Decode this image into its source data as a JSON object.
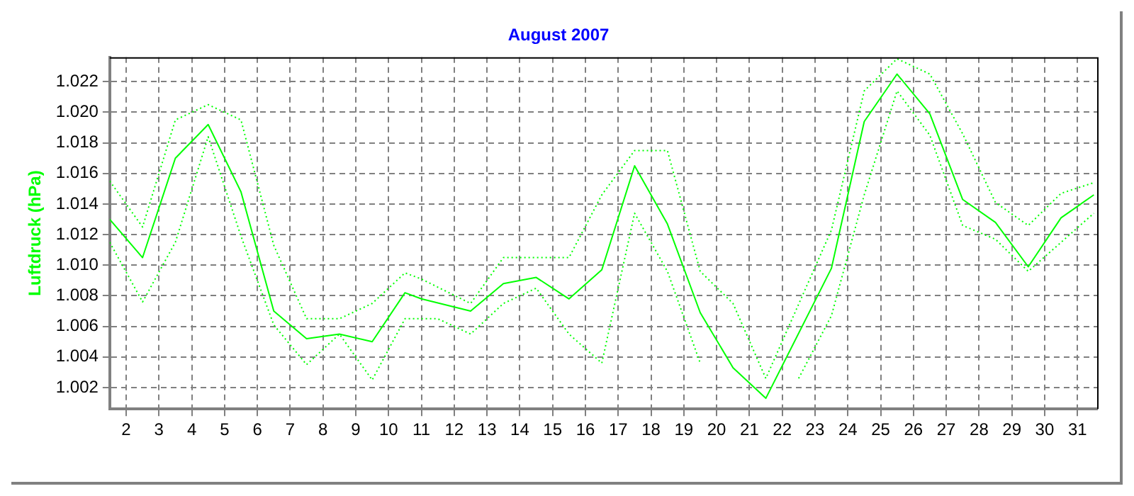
{
  "chart_data": {
    "type": "line",
    "title": "August 2007",
    "ylabel": "Luftdruck (hPa)",
    "xlim": [
      1.5,
      31.6
    ],
    "xticks": [
      2,
      3,
      4,
      5,
      6,
      7,
      8,
      9,
      10,
      11,
      12,
      13,
      14,
      15,
      16,
      17,
      18,
      19,
      20,
      21,
      22,
      23,
      24,
      25,
      26,
      27,
      28,
      29,
      30,
      31
    ],
    "ylim": [
      1.0006,
      1.0236
    ],
    "yticks": [
      1.002,
      1.004,
      1.006,
      1.008,
      {
        "value": 1.01,
        "label": "1.010"
      },
      1.012,
      1.014,
      1.016,
      1.018,
      {
        "value": 1.02,
        "label": "1.020"
      },
      1.022
    ],
    "grid": true,
    "legend": false,
    "marker": "none",
    "series": [
      {
        "color": "#00ff00",
        "line_style": "solid",
        "x": [
          1.5,
          2.5,
          3.5,
          4,
          4.5,
          5.5,
          6.5,
          7.5,
          8.5,
          9.5,
          10.5,
          11,
          12.5,
          13.5,
          14.5,
          15.5,
          16.5,
          17.5,
          18.5,
          19.5,
          20.5,
          21.5,
          23.5,
          24.5,
          25.5,
          26.5,
          27.5,
          28.5,
          29.5,
          30.5,
          31.5
        ],
        "values": [
          1.013,
          1.0105,
          1.017,
          1.0181,
          1.0192,
          1.0148,
          1.007,
          1.0052,
          1.0055,
          1.005,
          1.0082,
          1.0078,
          1.007,
          1.0088,
          1.0092,
          1.0078,
          1.0097,
          1.0165,
          1.0127,
          1.0069,
          1.0033,
          1.0013,
          1.0098,
          1.0194,
          1.0225,
          1.0199,
          1.0143,
          1.0128,
          1.0099,
          1.0131,
          1.0146
        ]
      },
      {
        "color": "#00ff00",
        "line_style": "dotted",
        "x": [
          1.5,
          2.5,
          3.5,
          4.5,
          5.5,
          6.5,
          7.5,
          8.5,
          9.5,
          10.5,
          11,
          12.5,
          13.5,
          15.5,
          16.5,
          17.5,
          18.5,
          19.5,
          20.5,
          21.5,
          23.5,
          24.5,
          25.5,
          26.5,
          27.5,
          28.5,
          29.5,
          30.5,
          31.5
        ],
        "values": [
          1.0155,
          1.0125,
          1.0195,
          1.0205,
          1.0195,
          1.0113,
          1.0065,
          1.0065,
          1.0075,
          1.0095,
          1.0091,
          1.0075,
          1.0105,
          1.0105,
          1.0146,
          1.0175,
          1.0175,
          1.0096,
          1.0075,
          1.0026,
          1.0123,
          1.0214,
          1.0235,
          1.0225,
          1.0186,
          1.0141,
          1.0126,
          1.0147,
          1.0154
        ]
      },
      {
        "color": "#00ff00",
        "line_style": "dotted",
        "x": [
          1.5,
          2.5,
          3.5,
          4.5,
          5.5,
          6.5,
          7.5,
          8.5,
          9.5,
          10.5,
          11.5,
          12.5,
          13.5,
          14.5,
          15.5,
          16.5,
          17.5,
          18.5,
          19.5,
          20.5,
          21.5,
          22.5,
          23.5,
          24.5,
          25.5,
          26.5,
          27.5,
          28.5,
          29.5,
          31.5
        ],
        "values": [
          1.0115,
          1.0076,
          1.0115,
          1.0184,
          1.0119,
          1.0061,
          1.0035,
          1.0055,
          1.0025,
          1.0065,
          1.0065,
          1.0055,
          1.0075,
          1.0085,
          1.0055,
          1.0036,
          1.0134,
          1.0096,
          1.0036,
          null,
          null,
          1.0026,
          1.0067,
          1.0146,
          1.0214,
          1.0185,
          1.0126,
          1.0117,
          1.0096,
          1.0134
        ]
      }
    ]
  }
}
